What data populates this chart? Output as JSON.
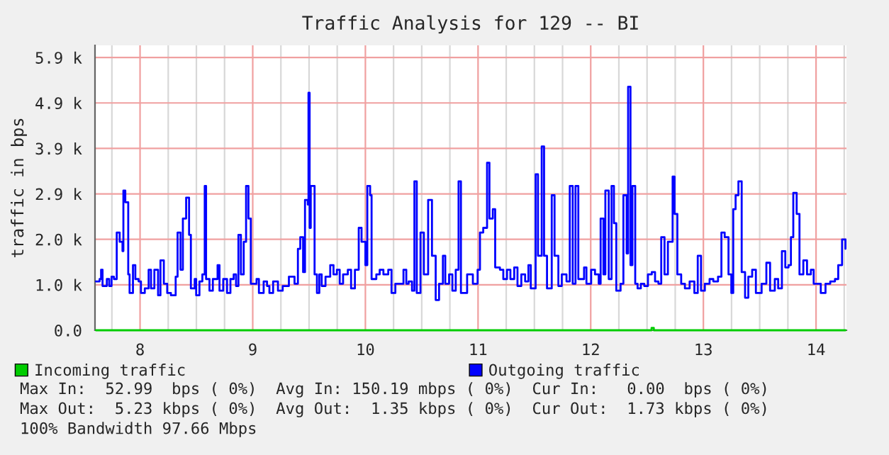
{
  "chart_data": {
    "type": "step",
    "title": "Traffic Analysis for 129 -- BI",
    "ylabel": "traffic in bps",
    "xlim": [
      7.6,
      14.27
    ],
    "ylim": [
      0,
      6.12
    ],
    "xticks": [
      {
        "value": 7.75,
        "label": null
      },
      8,
      {
        "value": 8.25,
        "label": null
      },
      {
        "value": 8.5,
        "label": null
      },
      {
        "value": 8.75,
        "label": null
      },
      9,
      {
        "value": 9.25,
        "label": null
      },
      {
        "value": 9.5,
        "label": null
      },
      {
        "value": 9.75,
        "label": null
      },
      10,
      {
        "value": 10.25,
        "label": null
      },
      {
        "value": 10.5,
        "label": null
      },
      {
        "value": 10.75,
        "label": null
      },
      11,
      {
        "value": 11.25,
        "label": null
      },
      {
        "value": 11.5,
        "label": null
      },
      {
        "value": 11.75,
        "label": null
      },
      12,
      {
        "value": 12.25,
        "label": null
      },
      {
        "value": 12.5,
        "label": null
      },
      {
        "value": 12.75,
        "label": null
      },
      13,
      {
        "value": 13.25,
        "label": null
      },
      {
        "value": 13.5,
        "label": null
      },
      {
        "value": 13.75,
        "label": null
      },
      14,
      {
        "value": 14.25,
        "label": null
      }
    ],
    "yticks": [
      {
        "value": 0,
        "label": "0.0"
      },
      {
        "value": 0.977,
        "label": "1.0 k"
      },
      {
        "value": 1.953,
        "label": "2.0 k"
      },
      {
        "value": 2.93,
        "label": "2.9 k"
      },
      {
        "value": 3.906,
        "label": "3.9 k"
      },
      {
        "value": 4.883,
        "label": "4.9 k"
      },
      {
        "value": 5.859,
        "label": "5.9 k"
      }
    ],
    "grid": true,
    "legend": "bottom",
    "series": [
      {
        "name": "Incoming traffic",
        "color": "#00cc00",
        "x": [
          7.608,
          12.54,
          12.56,
          14.261
        ],
        "values": [
          0,
          0.053,
          0,
          0
        ]
      },
      {
        "name": "Outgoing traffic",
        "color": "#0000ff",
        "x": [
          7.608,
          7.641,
          7.654,
          7.667,
          7.705,
          7.726,
          7.747,
          7.768,
          7.793,
          7.819,
          7.844,
          7.852,
          7.869,
          7.895,
          7.907,
          7.937,
          7.958,
          7.987,
          8.008,
          8.042,
          8.076,
          8.097,
          8.127,
          8.16,
          8.181,
          8.211,
          8.241,
          8.274,
          8.316,
          8.333,
          8.359,
          8.38,
          8.409,
          8.435,
          8.451,
          8.485,
          8.498,
          8.527,
          8.553,
          8.574,
          8.586,
          8.616,
          8.646,
          8.688,
          8.705,
          8.738,
          8.772,
          8.802,
          8.831,
          8.852,
          8.873,
          8.895,
          8.92,
          8.941,
          8.962,
          8.983,
          9.034,
          9.055,
          9.097,
          9.127,
          9.148,
          9.181,
          9.224,
          9.266,
          9.321,
          9.371,
          9.401,
          9.422,
          9.447,
          9.464,
          9.489,
          9.495,
          9.505,
          9.515,
          9.549,
          9.57,
          9.591,
          9.612,
          9.646,
          9.688,
          9.717,
          9.747,
          9.772,
          9.802,
          9.844,
          9.873,
          9.907,
          9.941,
          9.966,
          10.0,
          10.017,
          10.042,
          10.055,
          10.097,
          10.127,
          10.16,
          10.203,
          10.232,
          10.266,
          10.308,
          10.338,
          10.363,
          10.384,
          10.414,
          10.435,
          10.456,
          10.489,
          10.519,
          10.557,
          10.591,
          10.624,
          10.654,
          10.688,
          10.709,
          10.743,
          10.772,
          10.802,
          10.827,
          10.848,
          10.878,
          10.903,
          10.954,
          10.996,
          11.017,
          11.046,
          11.08,
          11.101,
          11.131,
          11.152,
          11.194,
          11.224,
          11.257,
          11.287,
          11.321,
          11.35,
          11.384,
          11.418,
          11.447,
          11.468,
          11.511,
          11.532,
          11.565,
          11.586,
          11.612,
          11.654,
          11.679,
          11.713,
          11.743,
          11.785,
          11.814,
          11.84,
          11.865,
          11.89,
          11.941,
          11.962,
          12.004,
          12.038,
          12.071,
          12.088,
          12.113,
          12.13,
          12.16,
          12.185,
          12.206,
          12.227,
          12.265,
          12.29,
          12.319,
          12.332,
          12.353,
          12.37,
          12.395,
          12.416,
          12.445,
          12.475,
          12.508,
          12.542,
          12.571,
          12.601,
          12.626,
          12.655,
          12.685,
          12.727,
          12.744,
          12.769,
          12.803,
          12.836,
          12.878,
          12.92,
          12.95,
          12.979,
          13.013,
          13.055,
          13.088,
          13.13,
          13.16,
          13.189,
          13.223,
          13.248,
          13.265,
          13.286,
          13.311,
          13.34,
          13.37,
          13.399,
          13.433,
          13.466,
          13.517,
          13.559,
          13.592,
          13.634,
          13.664,
          13.697,
          13.727,
          13.756,
          13.777,
          13.798,
          13.828,
          13.853,
          13.887,
          13.92,
          13.954,
          13.979,
          14.042,
          14.084,
          14.126,
          14.168,
          14.197,
          14.231,
          14.261
        ],
        "values": [
          1.05,
          1.1,
          1.3,
          0.95,
          1.1,
          0.95,
          1.15,
          1.1,
          2.1,
          1.9,
          1.7,
          3.0,
          2.75,
          1.2,
          0.8,
          1.4,
          1.1,
          1.05,
          0.8,
          0.9,
          1.3,
          0.9,
          1.3,
          0.75,
          1.5,
          1.0,
          0.8,
          0.75,
          1.15,
          2.1,
          1.3,
          2.4,
          2.85,
          2.05,
          0.9,
          1.1,
          0.75,
          1.05,
          1.2,
          3.1,
          1.1,
          0.85,
          1.1,
          1.4,
          0.85,
          1.1,
          0.8,
          1.1,
          1.2,
          0.95,
          2.05,
          1.2,
          1.9,
          3.1,
          2.4,
          1.0,
          1.1,
          0.8,
          1.05,
          0.95,
          0.8,
          1.05,
          0.85,
          0.95,
          1.15,
          1.0,
          1.75,
          2.0,
          1.25,
          2.8,
          2.7,
          5.1,
          2.2,
          3.1,
          1.2,
          0.8,
          1.2,
          0.95,
          1.15,
          1.4,
          1.2,
          1.3,
          1.0,
          1.2,
          1.3,
          0.9,
          1.3,
          2.2,
          1.9,
          1.4,
          3.1,
          2.9,
          1.1,
          1.2,
          1.3,
          1.2,
          1.3,
          0.8,
          1.0,
          1.0,
          1.3,
          1.0,
          1.05,
          0.85,
          3.2,
          0.8,
          2.1,
          1.2,
          2.8,
          1.6,
          0.65,
          1.0,
          1.6,
          1.0,
          1.2,
          0.85,
          1.3,
          3.2,
          0.8,
          0.8,
          1.2,
          1.0,
          1.3,
          2.1,
          2.2,
          3.6,
          2.4,
          2.6,
          1.35,
          1.3,
          1.1,
          1.3,
          1.1,
          1.35,
          0.95,
          1.2,
          1.05,
          1.4,
          0.9,
          3.35,
          1.6,
          3.95,
          1.6,
          0.9,
          2.9,
          1.6,
          0.95,
          1.2,
          1.05,
          3.1,
          1.0,
          3.1,
          1.1,
          1.35,
          1.0,
          1.3,
          1.2,
          1.0,
          2.4,
          1.2,
          3.0,
          1.1,
          3.1,
          2.3,
          0.85,
          1.0,
          2.9,
          1.65,
          5.23,
          1.4,
          3.1,
          1.0,
          0.9,
          1.0,
          0.95,
          1.2,
          1.25,
          1.05,
          1.0,
          2.0,
          1.2,
          1.9,
          3.3,
          2.5,
          1.2,
          1.0,
          0.9,
          1.05,
          0.8,
          1.6,
          0.85,
          1.0,
          1.1,
          1.05,
          1.15,
          2.1,
          2.0,
          1.2,
          0.8,
          2.6,
          2.9,
          3.2,
          1.25,
          0.7,
          1.15,
          1.3,
          0.8,
          1.0,
          1.45,
          0.85,
          1.1,
          0.9,
          1.7,
          1.35,
          1.4,
          2.0,
          2.95,
          2.5,
          1.2,
          1.5,
          1.2,
          1.3,
          1.0,
          0.8,
          1.0,
          1.05,
          1.1,
          1.4,
          1.95,
          1.75
        ]
      }
    ],
    "annotations": [
      "Max In:  52.99  bps ( 0%)  Avg In: 150.19 mbps ( 0%)  Cur In:   0.00  bps ( 0%)",
      "Max Out:  5.23 kbps ( 0%)  Avg Out:  1.35 kbps ( 0%)  Cur Out:  1.73 kbps ( 0%)",
      "100% Bandwidth 97.66 Mbps"
    ]
  }
}
